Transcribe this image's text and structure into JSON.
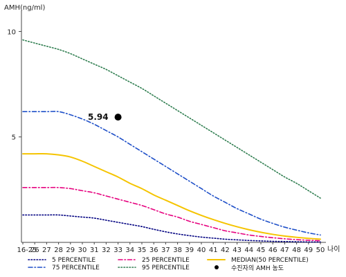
{
  "chart_data": {
    "type": "line",
    "ylabel": "AMH(ng/ml)",
    "xlabel": "나이",
    "ylim": [
      0,
      11
    ],
    "yticks": [
      {
        "value": 10,
        "label": "10"
      },
      {
        "value": 5,
        "label": "5"
      }
    ],
    "categories": [
      "16-25",
      "26",
      "27",
      "28",
      "29",
      "30",
      "31",
      "32",
      "33",
      "34",
      "35",
      "36",
      "37",
      "38",
      "39",
      "40",
      "41",
      "42",
      "43",
      "44",
      "45",
      "46",
      "47",
      "48",
      "49",
      "50"
    ],
    "series": [
      {
        "name": "5 PERCENTILE",
        "color": "#000080",
        "style": "dotted",
        "values": [
          1.3,
          1.3,
          1.3,
          1.3,
          1.25,
          1.2,
          1.15,
          1.05,
          0.95,
          0.85,
          0.75,
          0.62,
          0.5,
          0.4,
          0.32,
          0.25,
          0.2,
          0.15,
          0.12,
          0.09,
          0.07,
          0.05,
          0.04,
          0.03,
          0.02,
          0.02
        ]
      },
      {
        "name": "25 PERCENTILE",
        "color": "#e6007e",
        "style": "dashdot",
        "values": [
          2.6,
          2.6,
          2.6,
          2.6,
          2.55,
          2.45,
          2.35,
          2.2,
          2.05,
          1.9,
          1.75,
          1.55,
          1.35,
          1.2,
          1.0,
          0.85,
          0.7,
          0.55,
          0.45,
          0.35,
          0.28,
          0.22,
          0.17,
          0.13,
          0.1,
          0.08
        ]
      },
      {
        "name": "MEDIAN(50 PERCENTILE)",
        "color": "#f5c400",
        "style": "solid",
        "values": [
          4.2,
          4.2,
          4.2,
          4.15,
          4.05,
          3.85,
          3.6,
          3.35,
          3.1,
          2.8,
          2.55,
          2.25,
          2.0,
          1.75,
          1.5,
          1.28,
          1.08,
          0.9,
          0.74,
          0.6,
          0.48,
          0.38,
          0.3,
          0.24,
          0.19,
          0.15
        ]
      },
      {
        "name": "75 PERCENTILE",
        "color": "#1e4fc8",
        "style": "dashdot",
        "values": [
          6.2,
          6.2,
          6.2,
          6.2,
          6.05,
          5.85,
          5.6,
          5.3,
          5.0,
          4.65,
          4.3,
          3.95,
          3.6,
          3.25,
          2.9,
          2.55,
          2.2,
          1.9,
          1.6,
          1.35,
          1.1,
          0.9,
          0.72,
          0.58,
          0.45,
          0.35
        ]
      },
      {
        "name": "95 PERCENTILE",
        "color": "#2e7d4f",
        "style": "dotted",
        "values": [
          9.6,
          9.45,
          9.3,
          9.15,
          8.95,
          8.7,
          8.45,
          8.2,
          7.9,
          7.6,
          7.3,
          6.95,
          6.6,
          6.25,
          5.9,
          5.55,
          5.2,
          4.85,
          4.5,
          4.15,
          3.8,
          3.45,
          3.1,
          2.8,
          2.45,
          2.1
        ]
      }
    ],
    "points": [
      {
        "name": "수진자의 AMH 농도",
        "x": "33",
        "y": 5.94,
        "label": "5.94",
        "color": "#000000"
      }
    ],
    "grid": false
  }
}
